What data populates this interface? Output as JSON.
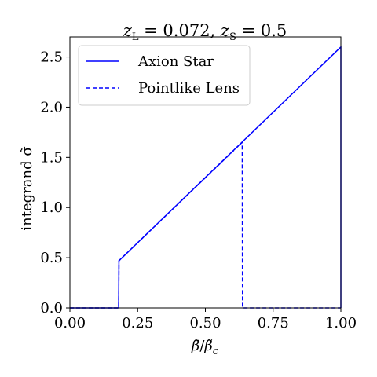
{
  "chart_data": {
    "type": "line",
    "title_parts": {
      "z_symbol": "z",
      "lens_sub": "L",
      "lens_value": " = 0.072, ",
      "source_sub": "S",
      "source_value": " = 0.5"
    },
    "xlabel_parts": {
      "beta": "β̃",
      "slash": "/",
      "beta_c": "β̃",
      "c_sub": "c"
    },
    "ylabel": "integrand σ̃",
    "xlim": [
      0.0,
      1.0
    ],
    "ylim": [
      0.0,
      2.7
    ],
    "xticks": [
      0.0,
      0.25,
      0.5,
      0.75,
      1.0
    ],
    "xtick_labels": [
      "0.00",
      "0.25",
      "0.50",
      "0.75",
      "1.00"
    ],
    "yticks": [
      0.0,
      0.5,
      1.0,
      1.5,
      2.0,
      2.5
    ],
    "ytick_labels": [
      "0.0",
      "0.5",
      "1.0",
      "1.5",
      "2.0",
      "2.5"
    ],
    "grid": false,
    "legend_position": "upper left",
    "series": [
      {
        "name": "Axion Star",
        "style": "solid",
        "color": "#0000ff",
        "x": [
          0.0,
          0.18,
          0.181,
          1.0,
          1.0
        ],
        "y": [
          0.0,
          0.0,
          0.47,
          2.6,
          0.0
        ]
      },
      {
        "name": "Pointlike Lens",
        "style": "dashed",
        "color": "#0000ff",
        "x": [
          0.0,
          0.18,
          0.181,
          0.636,
          0.637,
          1.0
        ],
        "y": [
          0.0,
          0.0,
          0.47,
          1.65,
          0.0,
          0.0
        ]
      }
    ]
  }
}
